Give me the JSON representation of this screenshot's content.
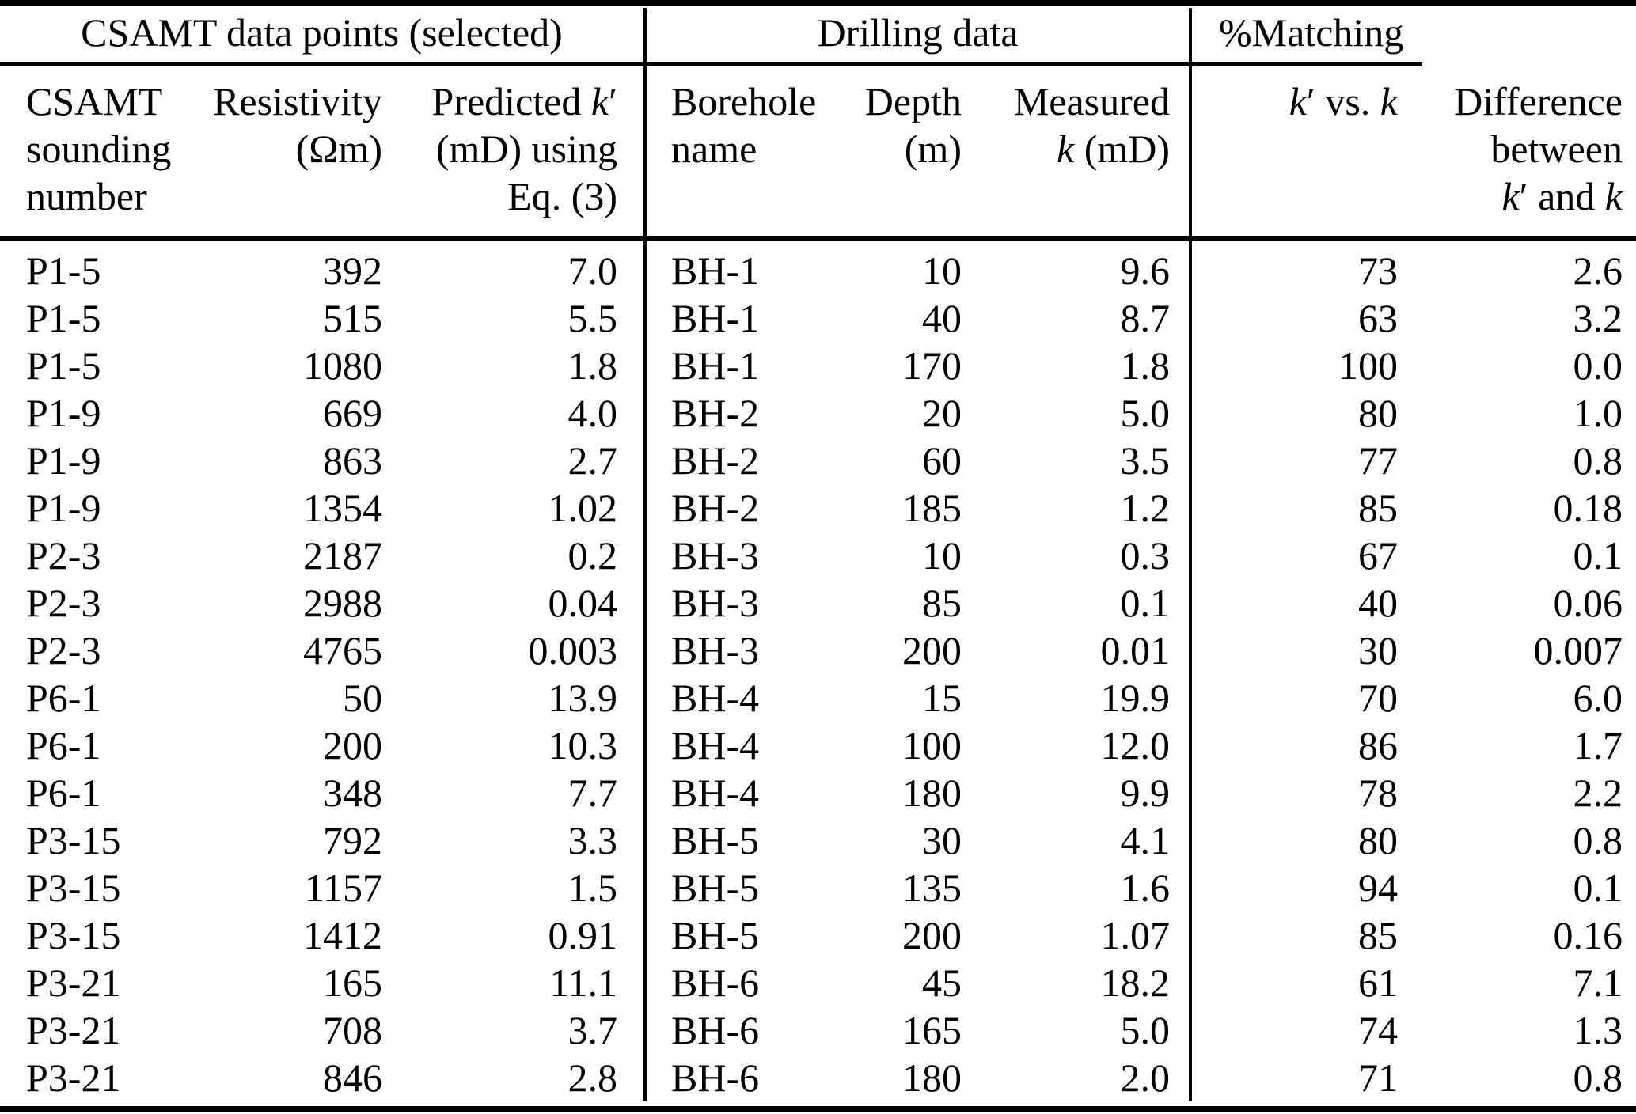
{
  "colors": {
    "text": "#000000",
    "background": "#ffffff",
    "rule": "#000000"
  },
  "table": {
    "groups": [
      {
        "label": "CSAMT data points (selected)"
      },
      {
        "label": "Drilling data"
      },
      {
        "label": "%Matching"
      }
    ],
    "columns": [
      {
        "lines": [
          "CSAMT",
          "sounding",
          "number"
        ]
      },
      {
        "lines": [
          "Resistivity",
          "(Ωm)"
        ]
      },
      {
        "lines": [
          "Predicted k′",
          "(mD) using",
          "Eq. (3)"
        ]
      },
      {
        "lines": [
          "Borehole",
          "name"
        ]
      },
      {
        "lines": [
          "Depth",
          "(m)"
        ]
      },
      {
        "lines": [
          "Measured",
          "k (mD)"
        ]
      },
      {
        "lines": [
          "k′ vs. k"
        ]
      },
      {
        "lines": [
          "Difference",
          "between",
          "k′ and k"
        ]
      }
    ],
    "rows": [
      [
        "P1-5",
        "392",
        "7.0",
        "BH-1",
        "10",
        "9.6",
        "73",
        "2.6"
      ],
      [
        "P1-5",
        "515",
        "5.5",
        "BH-1",
        "40",
        "8.7",
        "63",
        "3.2"
      ],
      [
        "P1-5",
        "1080",
        "1.8",
        "BH-1",
        "170",
        "1.8",
        "100",
        "0.0"
      ],
      [
        "P1-9",
        "669",
        "4.0",
        "BH-2",
        "20",
        "5.0",
        "80",
        "1.0"
      ],
      [
        "P1-9",
        "863",
        "2.7",
        "BH-2",
        "60",
        "3.5",
        "77",
        "0.8"
      ],
      [
        "P1-9",
        "1354",
        "1.02",
        "BH-2",
        "185",
        "1.2",
        "85",
        "0.18"
      ],
      [
        "P2-3",
        "2187",
        "0.2",
        "BH-3",
        "10",
        "0.3",
        "67",
        "0.1"
      ],
      [
        "P2-3",
        "2988",
        "0.04",
        "BH-3",
        "85",
        "0.1",
        "40",
        "0.06"
      ],
      [
        "P2-3",
        "4765",
        "0.003",
        "BH-3",
        "200",
        "0.01",
        "30",
        "0.007"
      ],
      [
        "P6-1",
        "50",
        "13.9",
        "BH-4",
        "15",
        "19.9",
        "70",
        "6.0"
      ],
      [
        "P6-1",
        "200",
        "10.3",
        "BH-4",
        "100",
        "12.0",
        "86",
        "1.7"
      ],
      [
        "P6-1",
        "348",
        "7.7",
        "BH-4",
        "180",
        "9.9",
        "78",
        "2.2"
      ],
      [
        "P3-15",
        "792",
        "3.3",
        "BH-5",
        "30",
        "4.1",
        "80",
        "0.8"
      ],
      [
        "P3-15",
        "1157",
        "1.5",
        "BH-5",
        "135",
        "1.6",
        "94",
        "0.1"
      ],
      [
        "P3-15",
        "1412",
        "0.91",
        "BH-5",
        "200",
        "1.07",
        "85",
        "0.16"
      ],
      [
        "P3-21",
        "165",
        "11.1",
        "BH-6",
        "45",
        "18.2",
        "61",
        "7.1"
      ],
      [
        "P3-21",
        "708",
        "3.7",
        "BH-6",
        "165",
        "5.0",
        "74",
        "1.3"
      ],
      [
        "P3-21",
        "846",
        "2.8",
        "BH-6",
        "180",
        "2.0",
        "71",
        "0.8"
      ]
    ]
  }
}
